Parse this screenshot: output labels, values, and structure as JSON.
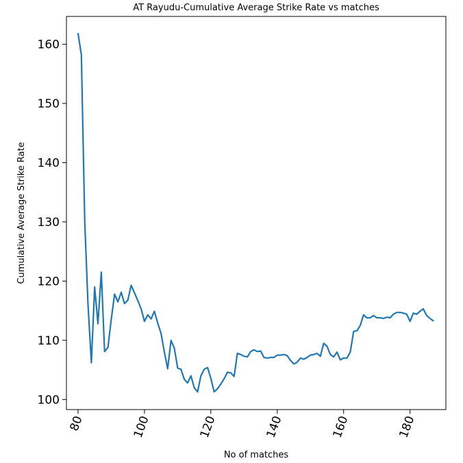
{
  "chart_data": {
    "type": "line",
    "title": "AT Rayudu-Cumulative Average Strike Rate vs matches",
    "xlabel": "No of matches",
    "ylabel": "Cumulative Average Strike Rate",
    "xlim": [
      76.5,
      190.8
    ],
    "ylim": [
      98.3,
      164.7
    ],
    "xticks": [
      80,
      100,
      120,
      140,
      160,
      180
    ],
    "yticks": [
      100,
      110,
      120,
      130,
      140,
      150,
      160
    ],
    "xtick_labels": [
      "80",
      "100",
      "120",
      "140",
      "160",
      "180"
    ],
    "ytick_labels": [
      "100",
      "110",
      "120",
      "130",
      "140",
      "150",
      "160"
    ],
    "grid": false,
    "line_color": "#1f77b4",
    "series": [
      {
        "x": [
          80,
          81,
          82,
          83,
          84,
          85,
          86,
          87,
          88,
          89,
          90,
          91,
          92,
          93,
          94,
          95,
          96,
          97,
          98,
          99,
          100,
          101,
          102,
          103,
          104,
          105,
          106,
          107,
          108,
          109,
          110,
          111,
          112,
          113,
          114,
          115,
          116,
          117,
          118,
          119,
          120,
          121,
          122,
          123,
          124,
          125,
          126,
          127,
          128,
          129,
          130,
          131,
          132,
          133,
          134,
          135,
          136,
          137,
          138,
          139,
          140,
          141,
          142,
          143,
          144,
          145,
          146,
          147,
          148,
          149,
          150,
          151,
          152,
          153,
          154,
          155,
          156,
          157,
          158,
          159,
          160,
          161,
          162,
          163,
          164,
          165,
          166,
          167,
          168,
          169,
          170,
          171,
          172,
          173,
          174,
          175,
          176,
          177,
          178,
          179,
          180,
          181,
          182,
          183,
          184,
          185,
          186,
          187
        ],
        "values": [
          161.8,
          158.2,
          130.2,
          116.0,
          106.2,
          119.0,
          112.8,
          121.5,
          108.1,
          108.8,
          113.5,
          117.8,
          116.5,
          118.1,
          116.2,
          116.8,
          119.3,
          118.0,
          116.7,
          115.3,
          113.2,
          114.3,
          113.6,
          114.9,
          112.9,
          111.2,
          108.0,
          105.2,
          110.0,
          108.7,
          105.3,
          105.1,
          103.4,
          102.8,
          104.0,
          102.0,
          101.3,
          104.0,
          105.1,
          105.4,
          103.6,
          101.3,
          101.8,
          102.6,
          103.5,
          104.6,
          104.5,
          103.9,
          107.8,
          107.6,
          107.3,
          107.2,
          108.1,
          108.4,
          108.1,
          108.2,
          107.1,
          107.0,
          107.1,
          107.1,
          107.5,
          107.5,
          107.6,
          107.4,
          106.6,
          106.0,
          106.3,
          107.0,
          106.8,
          107.1,
          107.5,
          107.6,
          107.8,
          107.3,
          109.5,
          109.0,
          107.6,
          107.2,
          108.0,
          106.7,
          107.0,
          107.0,
          108.0,
          111.5,
          111.6,
          112.5,
          114.3,
          113.8,
          113.8,
          114.2,
          113.8,
          113.8,
          113.7,
          113.9,
          113.8,
          114.4,
          114.7,
          114.7,
          114.6,
          114.4,
          113.2,
          114.6,
          114.4,
          114.9,
          115.3,
          114.2,
          113.7,
          113.3
        ]
      }
    ]
  }
}
